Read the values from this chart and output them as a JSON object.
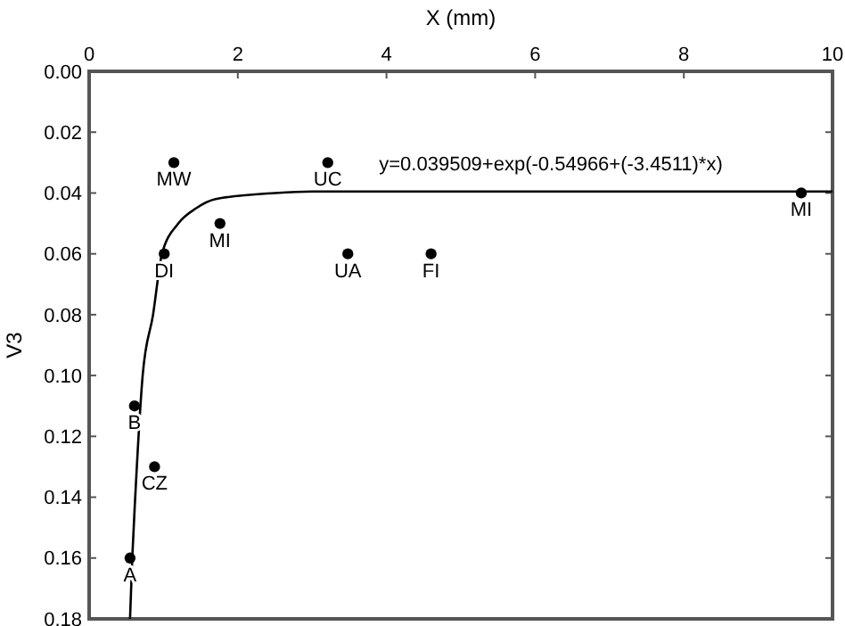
{
  "chart_data": {
    "type": "scatter",
    "xlabel": "X (mm)",
    "ylabel": "V3",
    "xlim": [
      0,
      10
    ],
    "xticks": [
      0,
      2,
      4,
      6,
      8,
      10
    ],
    "ylim": [
      0.18,
      0
    ],
    "yticks": [
      {
        "value": 0,
        "label": "0.00"
      },
      {
        "value": 0.02,
        "label": "0.02"
      },
      {
        "value": 0.04,
        "label": "0.04"
      },
      {
        "value": 0.06,
        "label": "0.06"
      },
      {
        "value": 0.08,
        "label": "0.08"
      },
      {
        "value": 0.1,
        "label": "0.10"
      },
      {
        "value": 0.12,
        "label": "0.12"
      },
      {
        "value": 0.14,
        "label": "0.14"
      },
      {
        "value": 0.16,
        "label": "0.16"
      },
      {
        "value": 0.18,
        "label": "0.18"
      }
    ],
    "grid": false,
    "marker": "circle",
    "series": [
      {
        "color": "#000000",
        "x": [
          0.55,
          0.61,
          0.88,
          1.01,
          1.14,
          1.76,
          3.21,
          3.48,
          4.6,
          9.58
        ],
        "values": [
          0.16,
          0.11,
          0.13,
          0.06,
          0.03,
          0.05,
          0.03,
          0.06,
          0.06,
          0.04
        ]
      },
      {
        "type": "line",
        "color": "#000000",
        "marker": "none",
        "x": [
          0.55,
          0.58,
          0.62,
          0.72,
          0.86,
          0.98,
          1.2,
          1.44,
          1.7,
          2.5,
          3,
          10
        ],
        "values": [
          0.18,
          0.16,
          0.14,
          0.1,
          0.08,
          0.06,
          0.05,
          0.045,
          0.042,
          0.04,
          0.0395,
          0.0395
        ]
      }
    ],
    "annotations": [
      {
        "text": "A",
        "x": 0.55,
        "y": 0.16
      },
      {
        "text": "B",
        "x": 0.61,
        "y": 0.11
      },
      {
        "text": "CZ",
        "x": 0.88,
        "y": 0.13
      },
      {
        "text": "DI",
        "x": 1.01,
        "y": 0.06
      },
      {
        "text": "MW",
        "x": 1.14,
        "y": 0.03
      },
      {
        "text": "MI",
        "x": 1.76,
        "y": 0.05
      },
      {
        "text": "UC",
        "x": 3.21,
        "y": 0.03
      },
      {
        "text": "UA",
        "x": 3.48,
        "y": 0.06
      },
      {
        "text": "FI",
        "x": 4.6,
        "y": 0.06
      },
      {
        "text": "MI",
        "x": 9.58,
        "y": 0.04
      },
      "y=0.039509+exp(-0.54966+(-3.4511)*x)"
    ]
  }
}
